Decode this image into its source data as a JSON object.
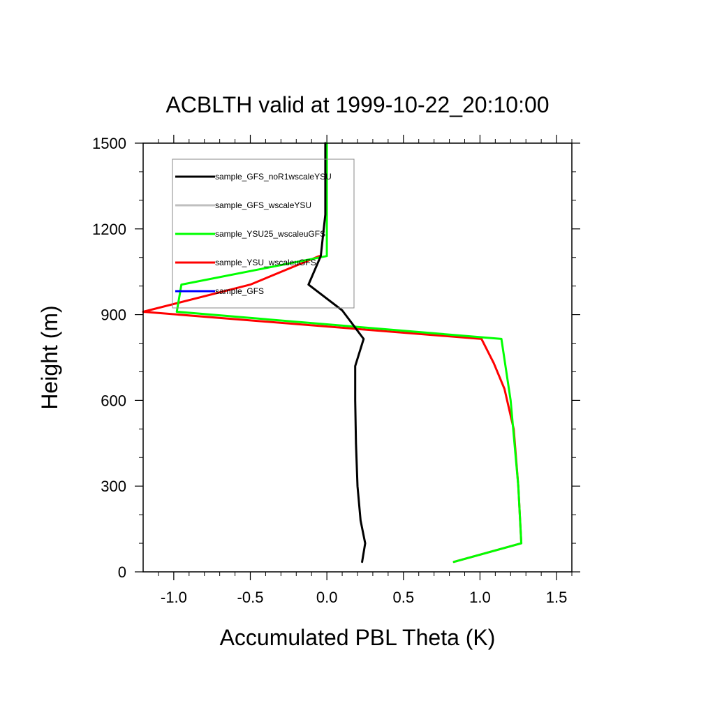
{
  "chart_data": {
    "type": "line",
    "title": "ACBLTH valid at 1999-10-22_20:10:00",
    "xlabel": "Accumulated PBL Theta (K)",
    "ylabel": "Height (m)",
    "xlim": [
      -1.2,
      1.6
    ],
    "ylim": [
      0,
      1500
    ],
    "x_ticks": [
      -1.0,
      -0.5,
      0.0,
      0.5,
      1.0,
      1.5
    ],
    "x_tick_labels": [
      "-1.0",
      "-0.5",
      "0.0",
      "0.5",
      "1.0",
      "1.5"
    ],
    "x_minor_step": 0.1,
    "y_ticks": [
      0,
      300,
      600,
      900,
      1200,
      1500
    ],
    "y_tick_labels": [
      "0",
      "300",
      "600",
      "900",
      "1200",
      "1500"
    ],
    "y_minor_step": 100,
    "grid": false,
    "legend_placement": "top-left",
    "series": [
      {
        "name": "sample_GFS_noR1wscaleYSU",
        "color": "#000000",
        "points": [
          [
            0.23,
            35
          ],
          [
            0.25,
            100
          ],
          [
            0.22,
            180
          ],
          [
            0.2,
            300
          ],
          [
            0.19,
            450
          ],
          [
            0.185,
            600
          ],
          [
            0.185,
            720
          ],
          [
            0.24,
            815
          ],
          [
            0.1,
            915
          ],
          [
            -0.12,
            1005
          ],
          [
            -0.04,
            1105
          ],
          [
            -0.01,
            1250
          ],
          [
            -0.01,
            1500
          ]
        ]
      },
      {
        "name": "sample_GFS_wscaleYSU",
        "color": "#bfbfbf",
        "points": []
      },
      {
        "name": "sample_YSU25_wscaleuGFS",
        "color": "#00ff00",
        "points": [
          [
            0.83,
            35
          ],
          [
            1.27,
            100
          ],
          [
            1.25,
            300
          ],
          [
            1.2,
            600
          ],
          [
            1.14,
            815
          ],
          [
            -0.98,
            910
          ],
          [
            -0.95,
            1005
          ],
          [
            0.0,
            1105
          ],
          [
            0.0,
            1250
          ],
          [
            0.0,
            1500
          ]
        ]
      },
      {
        "name": "sample_YSU_wscaleuGFS",
        "color": "#ff0000",
        "points": [
          [
            0.83,
            35
          ],
          [
            1.27,
            100
          ],
          [
            1.25,
            300
          ],
          [
            1.22,
            500
          ],
          [
            1.16,
            640
          ],
          [
            1.09,
            730
          ],
          [
            1.01,
            815
          ],
          [
            -1.2,
            910
          ],
          [
            -0.5,
            1005
          ],
          [
            -0.05,
            1105
          ]
        ]
      },
      {
        "name": "sample_GFS",
        "color": "#0000ff",
        "points": []
      }
    ]
  }
}
